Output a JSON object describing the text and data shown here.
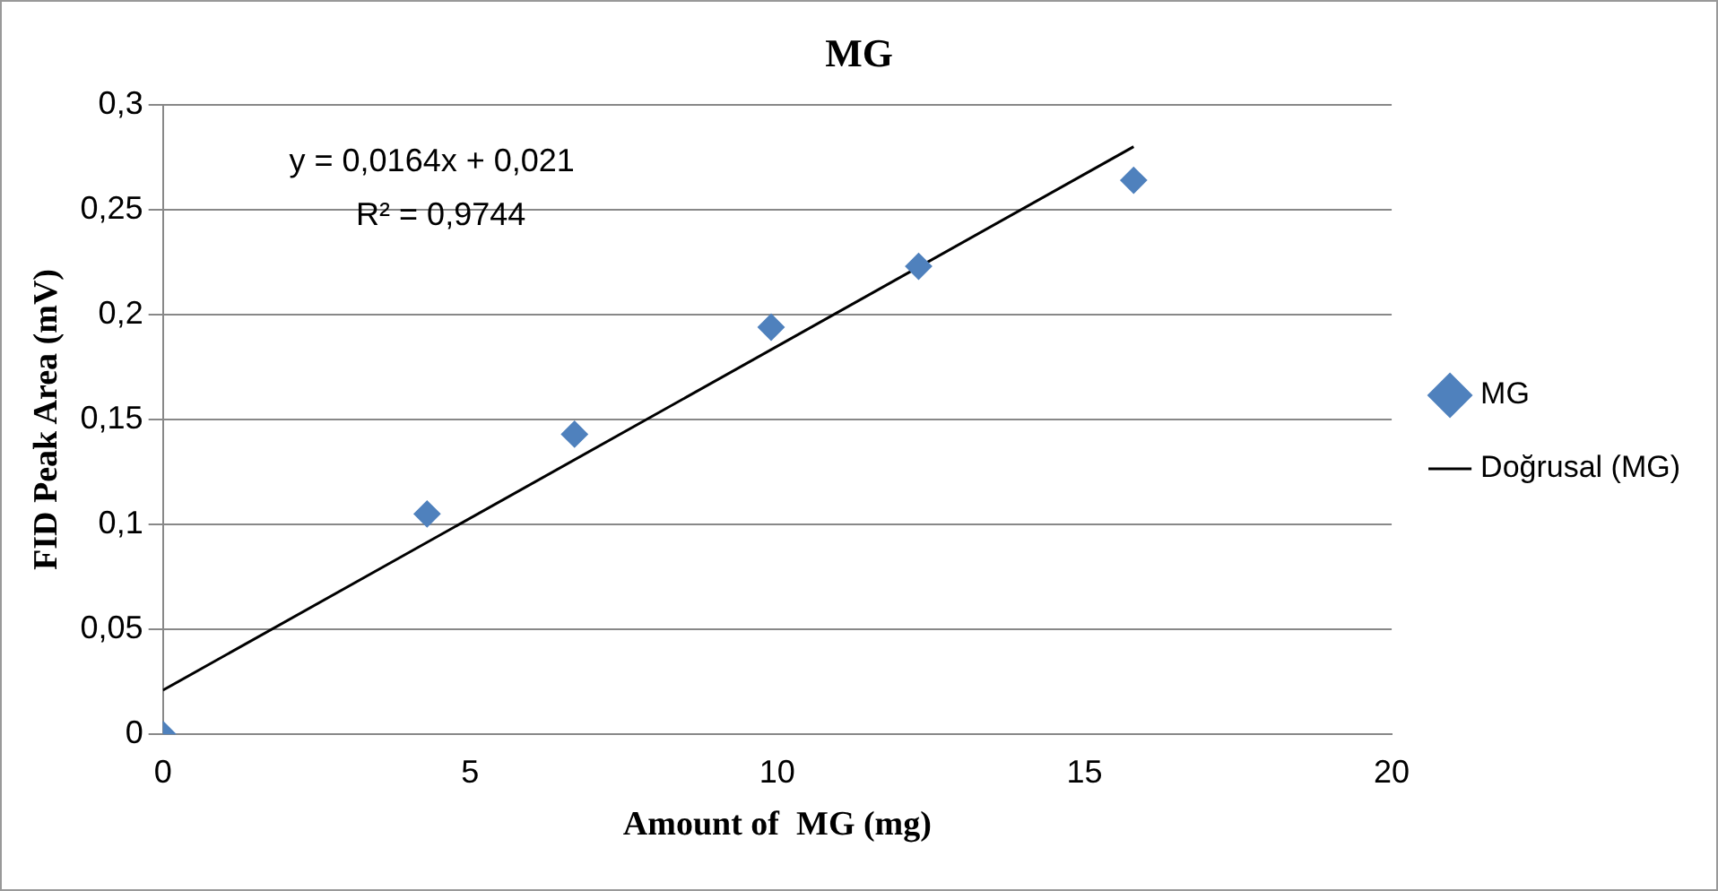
{
  "chart_data": {
    "type": "scatter",
    "title": "MG",
    "xlabel": "Amount of  MG (mg)",
    "ylabel": "FID Peak Area (mV)",
    "series": [
      {
        "name": "MG",
        "color": "#4f81bd",
        "marker": "diamond",
        "x": [
          0,
          4.3,
          6.7,
          9.9,
          12.3,
          15.8
        ],
        "values": [
          0,
          0.105,
          0.143,
          0.194,
          0.223,
          0.264
        ]
      },
      {
        "name": "Doğrusal (MG)",
        "type": "line",
        "color": "#000000",
        "marker": "none",
        "x": [
          0,
          15.8
        ],
        "values": [
          0.021,
          0.28
        ]
      }
    ],
    "xlim": [
      0,
      20
    ],
    "xticks": [
      0,
      5,
      10,
      15,
      20
    ],
    "ylim": [
      0,
      0.3
    ],
    "yticks": [
      0,
      {
        "value": 0.05,
        "label": "0,05"
      },
      {
        "value": 0.1,
        "label": "0,1"
      },
      {
        "value": 0.15,
        "label": "0,15"
      },
      {
        "value": 0.2,
        "label": "0,2"
      },
      {
        "value": 0.25,
        "label": "0,25"
      },
      {
        "value": 0.3,
        "label": "0,3"
      }
    ],
    "grid": "y",
    "legend": "right",
    "annotations": [
      "y = 0,0164x + 0,021",
      "R² = 0,9744"
    ]
  }
}
